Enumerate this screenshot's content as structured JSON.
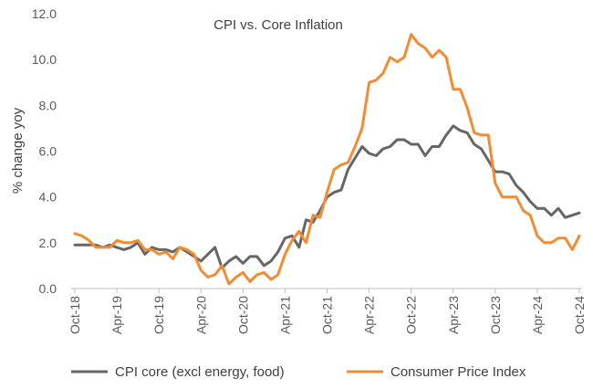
{
  "chart_data": {
    "type": "line",
    "title": "CPI vs. Core Inflation",
    "xlabel": "",
    "ylabel": "% change yoy",
    "ylim": [
      0,
      12
    ],
    "yticks": [
      "0.0",
      "2.0",
      "4.0",
      "6.0",
      "8.0",
      "10.0",
      "12.0"
    ],
    "x_tick_labels": [
      "Oct-18",
      "Apr-19",
      "Oct-19",
      "Apr-20",
      "Oct-20",
      "Apr-21",
      "Oct-21",
      "Apr-22",
      "Oct-22",
      "Apr-23",
      "Oct-23",
      "Apr-24",
      "Oct-24"
    ],
    "x": [
      "Oct-18",
      "Nov-18",
      "Dec-18",
      "Jan-19",
      "Feb-19",
      "Mar-19",
      "Apr-19",
      "May-19",
      "Jun-19",
      "Jul-19",
      "Aug-19",
      "Sep-19",
      "Oct-19",
      "Nov-19",
      "Dec-19",
      "Jan-20",
      "Feb-20",
      "Mar-20",
      "Apr-20",
      "May-20",
      "Jun-20",
      "Jul-20",
      "Aug-20",
      "Sep-20",
      "Oct-20",
      "Nov-20",
      "Dec-20",
      "Jan-21",
      "Feb-21",
      "Mar-21",
      "Apr-21",
      "May-21",
      "Jun-21",
      "Jul-21",
      "Aug-21",
      "Sep-21",
      "Oct-21",
      "Nov-21",
      "Dec-21",
      "Jan-22",
      "Feb-22",
      "Mar-22",
      "Apr-22",
      "May-22",
      "Jun-22",
      "Jul-22",
      "Aug-22",
      "Sep-22",
      "Oct-22",
      "Nov-22",
      "Dec-22",
      "Jan-23",
      "Feb-23",
      "Mar-23",
      "Apr-23",
      "May-23",
      "Jun-23",
      "Jul-23",
      "Aug-23",
      "Sep-23",
      "Oct-23",
      "Nov-23",
      "Dec-23",
      "Jan-24",
      "Feb-24",
      "Mar-24",
      "Apr-24",
      "May-24",
      "Jun-24",
      "Jul-24",
      "Aug-24",
      "Sep-24",
      "Oct-24"
    ],
    "series": [
      {
        "name": "CPI core (excl energy, food)",
        "color": "#666666",
        "values": [
          1.9,
          1.9,
          1.9,
          1.9,
          1.8,
          1.9,
          1.8,
          1.7,
          1.8,
          2.0,
          1.5,
          1.8,
          1.7,
          1.7,
          1.6,
          1.8,
          1.6,
          1.4,
          1.2,
          1.5,
          1.8,
          0.9,
          1.2,
          1.4,
          1.1,
          1.4,
          1.4,
          1.0,
          1.2,
          1.6,
          2.2,
          2.3,
          1.8,
          3.0,
          2.9,
          3.4,
          4.0,
          4.2,
          4.3,
          5.2,
          5.7,
          6.2,
          5.9,
          5.8,
          6.1,
          6.2,
          6.5,
          6.5,
          6.3,
          6.3,
          5.8,
          6.2,
          6.2,
          6.7,
          7.1,
          6.9,
          6.8,
          6.3,
          6.1,
          5.6,
          5.1,
          5.1,
          5.0,
          4.5,
          4.2,
          3.8,
          3.5,
          3.5,
          3.2,
          3.5,
          3.1,
          3.2,
          3.3
        ]
      },
      {
        "name": "Consumer Price Index",
        "color": "#F08C32",
        "values": [
          2.4,
          2.3,
          2.1,
          1.8,
          1.8,
          1.8,
          2.1,
          2.0,
          2.0,
          2.1,
          1.7,
          1.7,
          1.5,
          1.6,
          1.3,
          1.8,
          1.7,
          1.5,
          0.8,
          0.5,
          0.6,
          1.0,
          0.2,
          0.5,
          0.7,
          0.3,
          0.6,
          0.7,
          0.4,
          0.6,
          1.5,
          2.1,
          2.5,
          2.0,
          3.2,
          3.1,
          4.2,
          5.2,
          5.4,
          5.5,
          6.2,
          7.0,
          9.0,
          9.1,
          9.4,
          10.1,
          9.9,
          10.1,
          11.1,
          10.7,
          10.5,
          10.1,
          10.4,
          10.1,
          8.7,
          8.7,
          7.9,
          6.8,
          6.7,
          6.7,
          4.6,
          4.0,
          4.0,
          4.0,
          3.4,
          3.2,
          2.3,
          2.0,
          2.0,
          2.2,
          2.2,
          1.7,
          2.3
        ]
      }
    ],
    "grid": false,
    "legend_position": "bottom"
  }
}
